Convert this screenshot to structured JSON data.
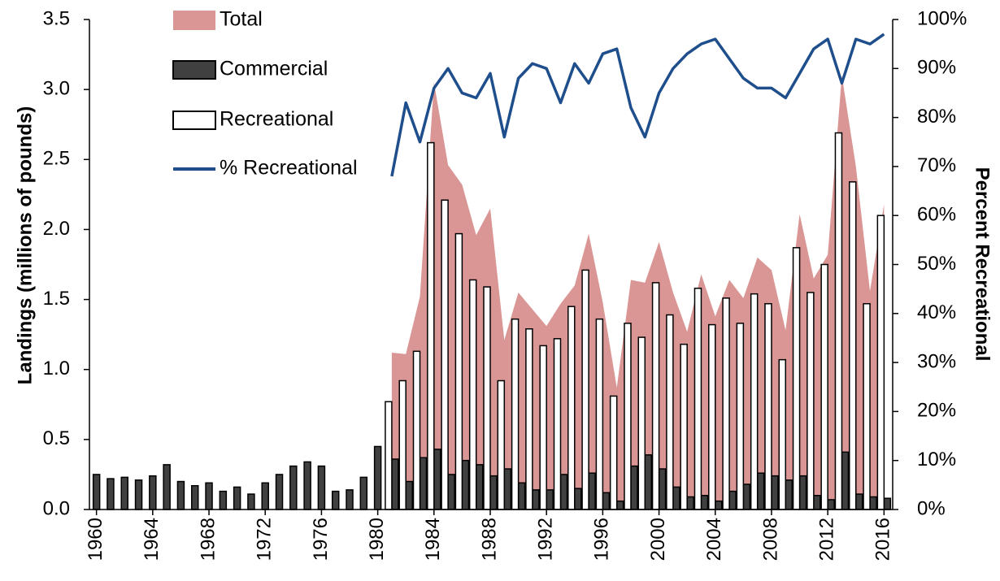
{
  "chart_data": {
    "type": "bar",
    "x": [
      1960,
      1961,
      1962,
      1963,
      1964,
      1965,
      1966,
      1967,
      1968,
      1969,
      1970,
      1971,
      1972,
      1973,
      1974,
      1975,
      1976,
      1977,
      1978,
      1979,
      1980,
      1981,
      1982,
      1983,
      1984,
      1985,
      1986,
      1987,
      1988,
      1989,
      1990,
      1991,
      1992,
      1993,
      1994,
      1995,
      1996,
      1997,
      1998,
      1999,
      2000,
      2001,
      2002,
      2003,
      2004,
      2005,
      2006,
      2007,
      2008,
      2009,
      2010,
      2011,
      2012,
      2013,
      2014,
      2015,
      2016
    ],
    "xlim": [
      1959.5,
      2016.5
    ],
    "xticks": [
      1960,
      1964,
      1968,
      1972,
      1976,
      1980,
      1984,
      1988,
      1992,
      1996,
      2000,
      2004,
      2008,
      2012,
      2016
    ],
    "ylabel": "Landings (millions of pounds)",
    "y2label": "Percent Recreational",
    "ylim": [
      0,
      3.5
    ],
    "yticks": [
      {
        "value": 0,
        "label": "0.0"
      },
      {
        "value": 0.5,
        "label": "0.5"
      },
      {
        "value": 1,
        "label": "1.0"
      },
      {
        "value": 1.5,
        "label": "1.5"
      },
      {
        "value": 2,
        "label": "2.0"
      },
      {
        "value": 2.5,
        "label": "2.5"
      },
      {
        "value": 3,
        "label": "3.0"
      },
      {
        "value": 3.5,
        "label": "3.5"
      }
    ],
    "y2lim": [
      0,
      100
    ],
    "y2ticks": [
      {
        "value": 0,
        "label": "0%"
      },
      {
        "value": 10,
        "label": "10%"
      },
      {
        "value": 20,
        "label": "20%"
      },
      {
        "value": 30,
        "label": "30%"
      },
      {
        "value": 40,
        "label": "40%"
      },
      {
        "value": 50,
        "label": "50%"
      },
      {
        "value": 60,
        "label": "60%"
      },
      {
        "value": 70,
        "label": "70%"
      },
      {
        "value": 80,
        "label": "80%"
      },
      {
        "value": 90,
        "label": "90%"
      },
      {
        "value": 100,
        "label": "100%"
      }
    ],
    "series": [
      {
        "name": "Total",
        "type": "area",
        "color": "#d99694",
        "values": [
          null,
          null,
          null,
          null,
          null,
          null,
          null,
          null,
          null,
          null,
          null,
          null,
          null,
          null,
          null,
          null,
          null,
          null,
          null,
          null,
          null,
          1.12,
          1.11,
          1.52,
          3.05,
          2.46,
          2.32,
          1.96,
          2.15,
          1.21,
          1.55,
          1.43,
          1.31,
          1.47,
          1.6,
          1.97,
          1.48,
          0.87,
          1.64,
          1.62,
          1.91,
          1.55,
          1.27,
          1.68,
          1.38,
          1.64,
          1.51,
          1.8,
          1.71,
          1.28,
          2.11,
          1.65,
          1.82,
          3.1,
          2.45,
          1.56,
          2.18
        ]
      },
      {
        "name": "Commercial",
        "type": "bar",
        "color": "#404040",
        "values": [
          0.25,
          0.22,
          0.23,
          0.21,
          0.24,
          0.32,
          0.2,
          0.17,
          0.19,
          0.13,
          0.16,
          0.11,
          0.19,
          0.25,
          0.31,
          0.34,
          0.31,
          0.13,
          0.14,
          0.23,
          0.45,
          0.36,
          0.2,
          0.37,
          0.43,
          0.25,
          0.35,
          0.32,
          0.24,
          0.29,
          0.19,
          0.14,
          0.14,
          0.25,
          0.15,
          0.26,
          0.12,
          0.06,
          0.31,
          0.39,
          0.29,
          0.16,
          0.09,
          0.1,
          0.06,
          0.13,
          0.18,
          0.26,
          0.24,
          0.21,
          0.24,
          0.1,
          0.07,
          0.41,
          0.11,
          0.09,
          0.08
        ]
      },
      {
        "name": "Recreational",
        "type": "bar",
        "color": "#ffffff",
        "values": [
          null,
          null,
          null,
          null,
          null,
          null,
          null,
          null,
          null,
          null,
          null,
          null,
          null,
          null,
          null,
          null,
          null,
          null,
          null,
          null,
          null,
          0.77,
          0.92,
          1.13,
          2.62,
          2.21,
          1.97,
          1.64,
          1.59,
          0.92,
          1.36,
          1.29,
          1.17,
          1.22,
          1.45,
          1.71,
          1.36,
          0.81,
          1.33,
          1.23,
          1.62,
          1.39,
          1.18,
          1.58,
          1.32,
          1.51,
          1.33,
          1.54,
          1.47,
          1.07,
          1.87,
          1.55,
          1.75,
          2.69,
          2.34,
          1.47,
          2.1
        ]
      },
      {
        "name": "% Recreational",
        "type": "line",
        "axis": "y2",
        "color": "#1f4e8c",
        "values": [
          null,
          null,
          null,
          null,
          null,
          null,
          null,
          null,
          null,
          null,
          null,
          null,
          null,
          null,
          null,
          null,
          null,
          null,
          null,
          null,
          null,
          68,
          83,
          75,
          86,
          90,
          85,
          84,
          89,
          76,
          88,
          91,
          90,
          83,
          91,
          87,
          93,
          94,
          82,
          76,
          85,
          90,
          93,
          95,
          96,
          92,
          88,
          86,
          86,
          84,
          89,
          94,
          96,
          87,
          96,
          95,
          97
        ]
      }
    ]
  }
}
